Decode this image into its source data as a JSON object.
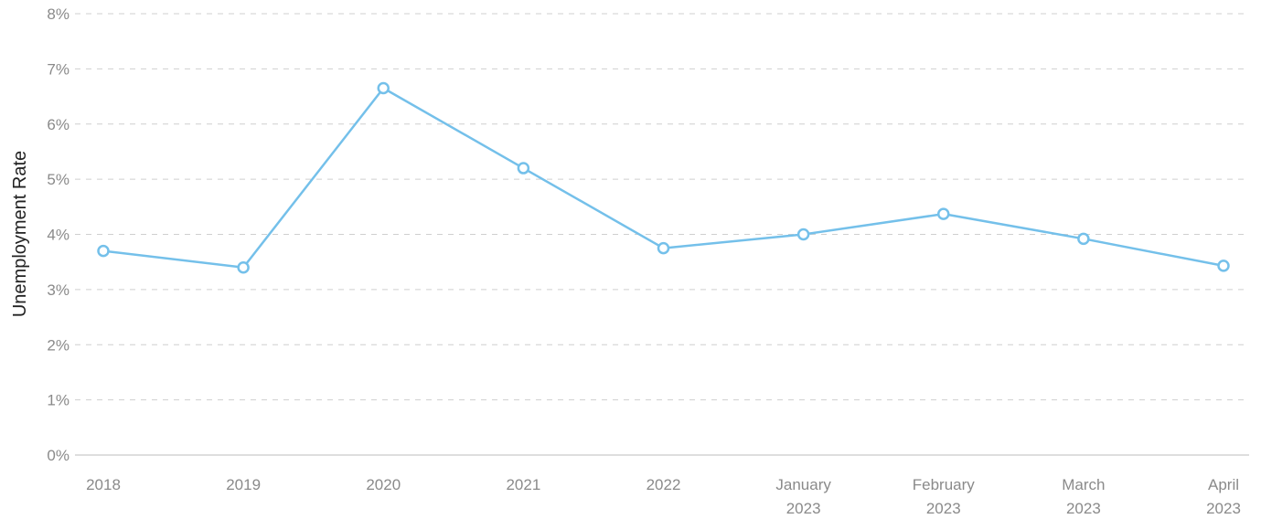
{
  "chart_data": {
    "type": "line",
    "title": "",
    "xlabel": "",
    "ylabel": "Unemployment Rate",
    "categories": [
      [
        "2018"
      ],
      [
        "2019"
      ],
      [
        "2020"
      ],
      [
        "2021"
      ],
      [
        "2022"
      ],
      [
        "January",
        "2023"
      ],
      [
        "February",
        "2023"
      ],
      [
        "March",
        "2023"
      ],
      [
        "April",
        "2023"
      ]
    ],
    "series": [
      {
        "values": [
          3.7,
          3.4,
          6.65,
          5.2,
          3.75,
          4.0,
          4.37,
          3.92,
          3.43
        ],
        "color": "#74c0ea"
      }
    ],
    "ylim": [
      0,
      8
    ],
    "yticks": [
      "0%",
      "1%",
      "2%",
      "3%",
      "4%",
      "5%",
      "6%",
      "7%",
      "8%"
    ],
    "grid": true,
    "legend": "none"
  }
}
